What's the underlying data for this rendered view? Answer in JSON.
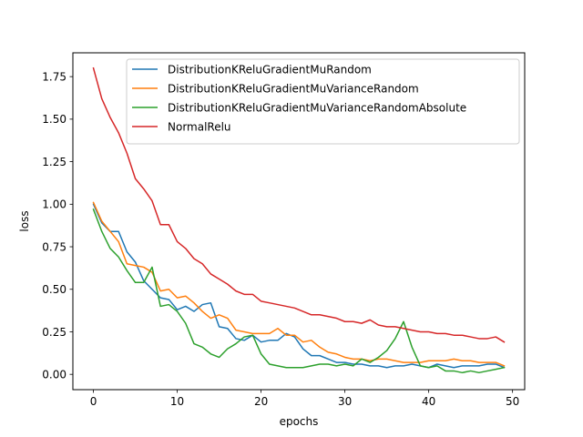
{
  "chart_data": {
    "type": "line",
    "title": "",
    "xlabel": "epochs",
    "ylabel": "loss",
    "xlim": [
      -2.45,
      51.45
    ],
    "ylim": [
      -0.09,
      1.89
    ],
    "xticks": [
      0,
      10,
      20,
      30,
      40,
      50
    ],
    "xtick_labels": [
      "0",
      "10",
      "20",
      "30",
      "40",
      "50"
    ],
    "yticks": [
      0.0,
      0.25,
      0.5,
      0.75,
      1.0,
      1.25,
      1.5,
      1.75
    ],
    "ytick_labels": [
      "0.00",
      "0.25",
      "0.50",
      "0.75",
      "1.00",
      "1.25",
      "1.50",
      "1.75"
    ],
    "grid": false,
    "legend_position": "upper-right",
    "x": [
      0,
      1,
      2,
      3,
      4,
      5,
      6,
      7,
      8,
      9,
      10,
      11,
      12,
      13,
      14,
      15,
      16,
      17,
      18,
      19,
      20,
      21,
      22,
      23,
      24,
      25,
      26,
      27,
      28,
      29,
      30,
      31,
      32,
      33,
      34,
      35,
      36,
      37,
      38,
      39,
      40,
      41,
      42,
      43,
      44,
      45,
      46,
      47,
      48,
      49
    ],
    "series": [
      {
        "name": "DistributionKReluGradientMuRandom",
        "color": "#1f77b4",
        "values": [
          1.0,
          0.89,
          0.84,
          0.84,
          0.72,
          0.66,
          0.55,
          0.5,
          0.45,
          0.44,
          0.38,
          0.4,
          0.37,
          0.41,
          0.42,
          0.28,
          0.27,
          0.21,
          0.2,
          0.23,
          0.19,
          0.2,
          0.2,
          0.24,
          0.22,
          0.15,
          0.11,
          0.11,
          0.09,
          0.07,
          0.07,
          0.06,
          0.06,
          0.05,
          0.05,
          0.04,
          0.05,
          0.05,
          0.06,
          0.05,
          0.04,
          0.06,
          0.05,
          0.04,
          0.05,
          0.05,
          0.05,
          0.06,
          0.06,
          0.04
        ]
      },
      {
        "name": "DistributionKReluGradientMuVarianceRandom",
        "color": "#ff7f0e",
        "values": [
          1.01,
          0.9,
          0.84,
          0.78,
          0.65,
          0.64,
          0.63,
          0.6,
          0.49,
          0.5,
          0.45,
          0.46,
          0.42,
          0.37,
          0.33,
          0.35,
          0.33,
          0.26,
          0.25,
          0.24,
          0.24,
          0.24,
          0.27,
          0.23,
          0.23,
          0.19,
          0.2,
          0.16,
          0.13,
          0.12,
          0.1,
          0.09,
          0.09,
          0.08,
          0.09,
          0.09,
          0.08,
          0.07,
          0.07,
          0.07,
          0.08,
          0.08,
          0.08,
          0.09,
          0.08,
          0.08,
          0.07,
          0.07,
          0.07,
          0.05
        ]
      },
      {
        "name": "DistributionKReluGradientMuVarianceRandomAbsolute",
        "color": "#2ca02c",
        "values": [
          0.97,
          0.84,
          0.74,
          0.69,
          0.61,
          0.54,
          0.54,
          0.63,
          0.4,
          0.41,
          0.37,
          0.3,
          0.18,
          0.16,
          0.12,
          0.1,
          0.15,
          0.18,
          0.22,
          0.23,
          0.12,
          0.06,
          0.05,
          0.04,
          0.04,
          0.04,
          0.05,
          0.06,
          0.06,
          0.05,
          0.06,
          0.05,
          0.09,
          0.07,
          0.1,
          0.14,
          0.21,
          0.31,
          0.16,
          0.05,
          0.04,
          0.05,
          0.02,
          0.02,
          0.01,
          0.02,
          0.01,
          0.02,
          0.03,
          0.04
        ]
      },
      {
        "name": "NormalRelu",
        "color": "#d62728",
        "values": [
          1.8,
          1.62,
          1.51,
          1.42,
          1.3,
          1.15,
          1.09,
          1.02,
          0.88,
          0.88,
          0.78,
          0.74,
          0.68,
          0.65,
          0.59,
          0.56,
          0.53,
          0.49,
          0.47,
          0.47,
          0.43,
          0.42,
          0.41,
          0.4,
          0.39,
          0.37,
          0.35,
          0.35,
          0.34,
          0.33,
          0.31,
          0.31,
          0.3,
          0.32,
          0.29,
          0.28,
          0.28,
          0.27,
          0.26,
          0.25,
          0.25,
          0.24,
          0.24,
          0.23,
          0.23,
          0.22,
          0.21,
          0.21,
          0.22,
          0.19
        ]
      }
    ]
  }
}
